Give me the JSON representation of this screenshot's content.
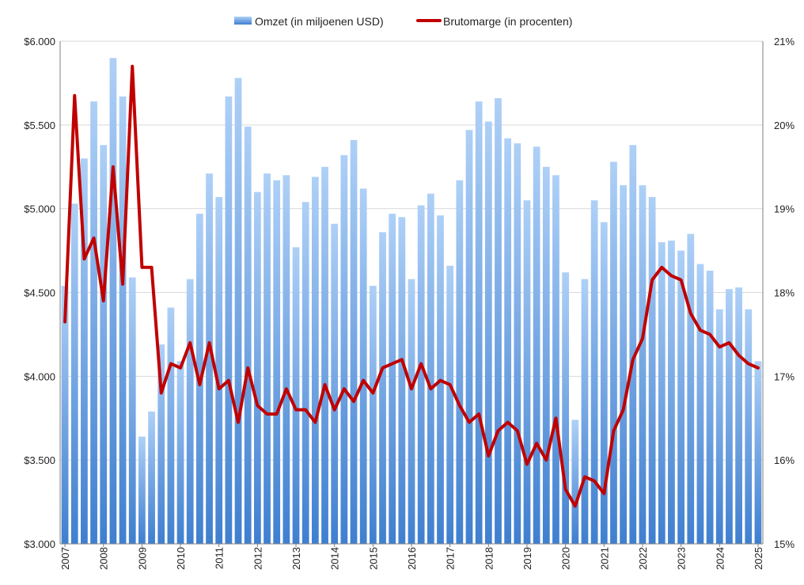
{
  "legend": {
    "bar_label": "Omzet (in miljoenen USD)",
    "line_label": "Brutomarge (in procenten)"
  },
  "colors": {
    "bar_top": "#aed0f7",
    "bar_bottom": "#3f7fd0",
    "line": "#c00000",
    "grid": "#d9d9d9",
    "axis": "#7f7f7f"
  },
  "chart_data": {
    "type": "bar+line",
    "y_left": {
      "min": 3000,
      "max": 6000,
      "ticks": [
        3000,
        3500,
        4000,
        4500,
        5000,
        5500,
        6000
      ],
      "tick_labels": [
        "$3.000",
        "$3.500",
        "$4.000",
        "$4.500",
        "$5.000",
        "$5.500",
        "$6.000"
      ]
    },
    "y_right": {
      "min": 15,
      "max": 21,
      "ticks": [
        15,
        16,
        17,
        18,
        19,
        20,
        21
      ],
      "tick_labels": [
        "15%",
        "16%",
        "17%",
        "18%",
        "19%",
        "20%",
        "21%"
      ]
    },
    "x_year_labels": [
      "2007",
      "2008",
      "2009",
      "2010",
      "2011",
      "2012",
      "2013",
      "2014",
      "2015",
      "2016",
      "2017",
      "2018",
      "2019",
      "2020",
      "2021",
      "2022",
      "2023",
      "2024",
      "2025"
    ],
    "grid": "horizontal",
    "legend_position": "top-center",
    "series": [
      {
        "name": "Omzet (in miljoenen USD)",
        "type": "bar",
        "axis": "left",
        "values": [
          4540,
          5030,
          5300,
          5640,
          5380,
          5900,
          5670,
          4590,
          3640,
          3790,
          4190,
          4410,
          4090,
          4580,
          4970,
          5210,
          5070,
          5670,
          5780,
          5490,
          5100,
          5210,
          5170,
          5200,
          4770,
          5040,
          5190,
          5250,
          4910,
          5320,
          5410,
          5120,
          4540,
          4860,
          4970,
          4950,
          4580,
          5020,
          5090,
          4960,
          4660,
          5170,
          5470,
          5640,
          5520,
          5660,
          5420,
          5390,
          5050,
          5370,
          5250,
          5200,
          4620,
          3740,
          4580,
          5050,
          4920,
          5280,
          5140,
          5380,
          5140,
          5070,
          4800,
          4810,
          4750,
          4850,
          4670,
          4630,
          4400,
          4520,
          4530,
          4400,
          4090
        ]
      },
      {
        "name": "Brutomarge (in procenten)",
        "type": "line",
        "axis": "right",
        "values": [
          17.65,
          20.35,
          18.4,
          18.65,
          17.9,
          19.5,
          18.1,
          20.7,
          18.3,
          18.3,
          16.8,
          17.15,
          17.1,
          17.4,
          16.9,
          17.4,
          16.85,
          16.95,
          16.45,
          17.1,
          16.65,
          16.55,
          16.55,
          16.85,
          16.6,
          16.6,
          16.45,
          16.9,
          16.6,
          16.85,
          16.7,
          16.95,
          16.8,
          17.1,
          17.15,
          17.2,
          16.85,
          17.15,
          16.85,
          16.95,
          16.9,
          16.65,
          16.45,
          16.55,
          16.05,
          16.35,
          16.45,
          16.35,
          15.95,
          16.2,
          16.0,
          16.5,
          15.65,
          15.45,
          15.8,
          15.75,
          15.6,
          16.35,
          16.6,
          17.2,
          17.45,
          18.15,
          18.3,
          18.2,
          18.15,
          17.75,
          17.55,
          17.5,
          17.35,
          17.4,
          17.25,
          17.15,
          17.1
        ]
      }
    ]
  }
}
